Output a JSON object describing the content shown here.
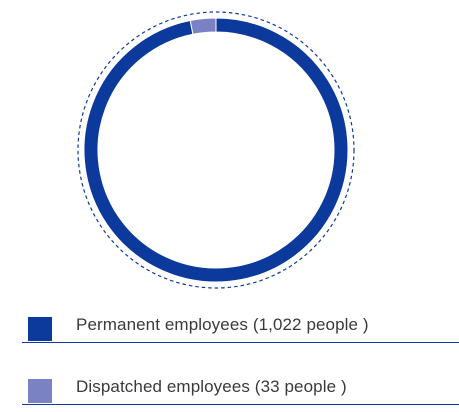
{
  "chart_data": {
    "type": "pie",
    "style": "donut",
    "title": "",
    "categories": [
      "Permanent employees",
      "Dispatched employees"
    ],
    "values": [
      1022,
      33
    ],
    "unit": "people",
    "colors": [
      "#0b3a9c",
      "#7b82c4"
    ],
    "legend": {
      "placement": "bottom",
      "entries": [
        "Permanent employees (1,022 people )",
        "Dispatched employees (33 people )"
      ]
    }
  },
  "colors": {
    "outer_dashed_ring": "#0b3a9c",
    "legend_rule": "#0b3a9c"
  }
}
